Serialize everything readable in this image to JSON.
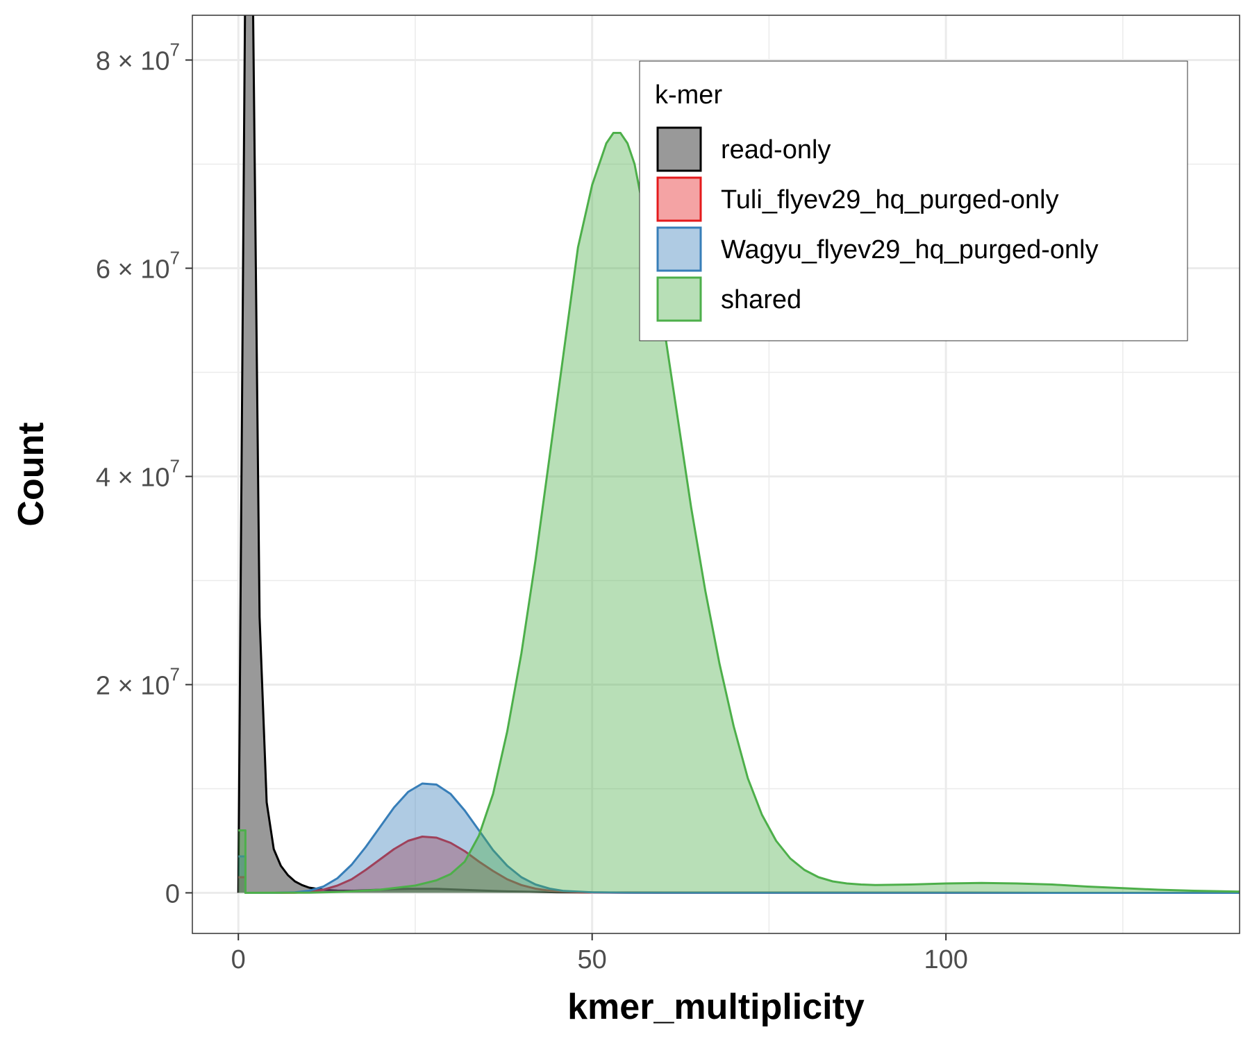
{
  "chart_data": {
    "type": "area",
    "xlabel": "kmer_multiplicity",
    "ylabel": "Count",
    "xlim": [
      -6.5,
      141.5
    ],
    "ylim": [
      -3900000,
      84300000
    ],
    "x_ticks": [
      0,
      50,
      100
    ],
    "x_tick_labels": [
      "0",
      "50",
      "100"
    ],
    "y_ticks": [
      0,
      20000000,
      40000000,
      60000000,
      80000000
    ],
    "y_tick_labels": [
      {
        "mantissa": "0",
        "exp": ""
      },
      {
        "mantissa": "2 × 10",
        "exp": "7"
      },
      {
        "mantissa": "4 × 10",
        "exp": "7"
      },
      {
        "mantissa": "6 × 10",
        "exp": "7"
      },
      {
        "mantissa": "8 × 10",
        "exp": "7"
      }
    ],
    "grid": true,
    "legend": {
      "title": "k-mer",
      "position": "top-right",
      "entries": [
        "read-only",
        "Tuli_flyev29_hq_purged-only",
        "Wagyu_flyev29_hq_purged-only",
        "shared"
      ]
    },
    "series": [
      {
        "name": "read-only",
        "stroke": "#000000",
        "fill": "#999999",
        "fill_opacity": 1,
        "points": [
          [
            0,
            0
          ],
          [
            0,
            0
          ],
          [
            1,
            90000000
          ],
          [
            2,
            90000000
          ],
          [
            3,
            26500000
          ],
          [
            4,
            8700000
          ],
          [
            5,
            4200000
          ],
          [
            6,
            2600000
          ],
          [
            7,
            1700000
          ],
          [
            8,
            1100000
          ],
          [
            9,
            750000
          ],
          [
            10,
            500000
          ],
          [
            12,
            300000
          ],
          [
            14,
            220000
          ],
          [
            16,
            200000
          ],
          [
            18,
            250000
          ],
          [
            20,
            300000
          ],
          [
            22,
            350000
          ],
          [
            24,
            380000
          ],
          [
            26,
            390000
          ],
          [
            28,
            380000
          ],
          [
            30,
            330000
          ],
          [
            32,
            280000
          ],
          [
            34,
            230000
          ],
          [
            36,
            180000
          ],
          [
            38,
            140000
          ],
          [
            40,
            110000
          ],
          [
            45,
            60000
          ],
          [
            50,
            40000
          ],
          [
            60,
            20000
          ],
          [
            80,
            10000
          ],
          [
            100,
            5000
          ],
          [
            141.5,
            0
          ]
        ]
      },
      {
        "name": "Tuli_flyev29_hq_purged-only",
        "stroke": "#e41a1c",
        "fill": "#e41a1c",
        "fill_opacity": 0.4,
        "points": [
          [
            0,
            1500000
          ],
          [
            1,
            1500000
          ],
          [
            1,
            0
          ],
          [
            5,
            0
          ],
          [
            8,
            20000
          ],
          [
            10,
            100000
          ],
          [
            12,
            300000
          ],
          [
            14,
            700000
          ],
          [
            16,
            1300000
          ],
          [
            18,
            2200000
          ],
          [
            20,
            3200000
          ],
          [
            22,
            4200000
          ],
          [
            24,
            5000000
          ],
          [
            26,
            5400000
          ],
          [
            28,
            5300000
          ],
          [
            30,
            4800000
          ],
          [
            32,
            4000000
          ],
          [
            34,
            3000000
          ],
          [
            36,
            2100000
          ],
          [
            38,
            1300000
          ],
          [
            40,
            750000
          ],
          [
            42,
            400000
          ],
          [
            44,
            200000
          ],
          [
            46,
            100000
          ],
          [
            50,
            30000
          ],
          [
            55,
            10000
          ],
          [
            141.5,
            0
          ]
        ]
      },
      {
        "name": "Wagyu_flyev29_hq_purged-only",
        "stroke": "#377eb8",
        "fill": "#377eb8",
        "fill_opacity": 0.4,
        "points": [
          [
            0,
            3500000
          ],
          [
            1,
            3500000
          ],
          [
            1,
            0
          ],
          [
            5,
            0
          ],
          [
            8,
            50000
          ],
          [
            10,
            200000
          ],
          [
            12,
            600000
          ],
          [
            14,
            1400000
          ],
          [
            16,
            2700000
          ],
          [
            18,
            4400000
          ],
          [
            20,
            6300000
          ],
          [
            22,
            8200000
          ],
          [
            24,
            9700000
          ],
          [
            26,
            10500000
          ],
          [
            28,
            10400000
          ],
          [
            30,
            9500000
          ],
          [
            32,
            7900000
          ],
          [
            34,
            6000000
          ],
          [
            36,
            4100000
          ],
          [
            38,
            2600000
          ],
          [
            40,
            1500000
          ],
          [
            42,
            800000
          ],
          [
            44,
            400000
          ],
          [
            46,
            180000
          ],
          [
            50,
            50000
          ],
          [
            55,
            10000
          ],
          [
            141.5,
            0
          ]
        ]
      },
      {
        "name": "shared",
        "stroke": "#4daf4a",
        "fill": "#4daf4a",
        "fill_opacity": 0.4,
        "points": [
          [
            0,
            6000000
          ],
          [
            1,
            6000000
          ],
          [
            1,
            0
          ],
          [
            10,
            20000
          ],
          [
            15,
            100000
          ],
          [
            20,
            300000
          ],
          [
            25,
            700000
          ],
          [
            28,
            1200000
          ],
          [
            30,
            1800000
          ],
          [
            32,
            3000000
          ],
          [
            34,
            5500000
          ],
          [
            36,
            9500000
          ],
          [
            38,
            15500000
          ],
          [
            40,
            23000000
          ],
          [
            42,
            32000000
          ],
          [
            44,
            42000000
          ],
          [
            46,
            52000000
          ],
          [
            48,
            62000000
          ],
          [
            50,
            68000000
          ],
          [
            52,
            72000000
          ],
          [
            53,
            73000000
          ],
          [
            54,
            73000000
          ],
          [
            55,
            72000000
          ],
          [
            56,
            70000000
          ],
          [
            58,
            63000000
          ],
          [
            60,
            55000000
          ],
          [
            62,
            46000000
          ],
          [
            64,
            37000000
          ],
          [
            66,
            29000000
          ],
          [
            68,
            22000000
          ],
          [
            70,
            16000000
          ],
          [
            72,
            11000000
          ],
          [
            74,
            7500000
          ],
          [
            76,
            5000000
          ],
          [
            78,
            3300000
          ],
          [
            80,
            2200000
          ],
          [
            82,
            1500000
          ],
          [
            84,
            1100000
          ],
          [
            86,
            900000
          ],
          [
            88,
            800000
          ],
          [
            90,
            750000
          ],
          [
            95,
            800000
          ],
          [
            100,
            900000
          ],
          [
            105,
            950000
          ],
          [
            110,
            900000
          ],
          [
            115,
            800000
          ],
          [
            120,
            600000
          ],
          [
            125,
            450000
          ],
          [
            130,
            300000
          ],
          [
            135,
            200000
          ],
          [
            141.5,
            120000
          ]
        ]
      }
    ]
  }
}
